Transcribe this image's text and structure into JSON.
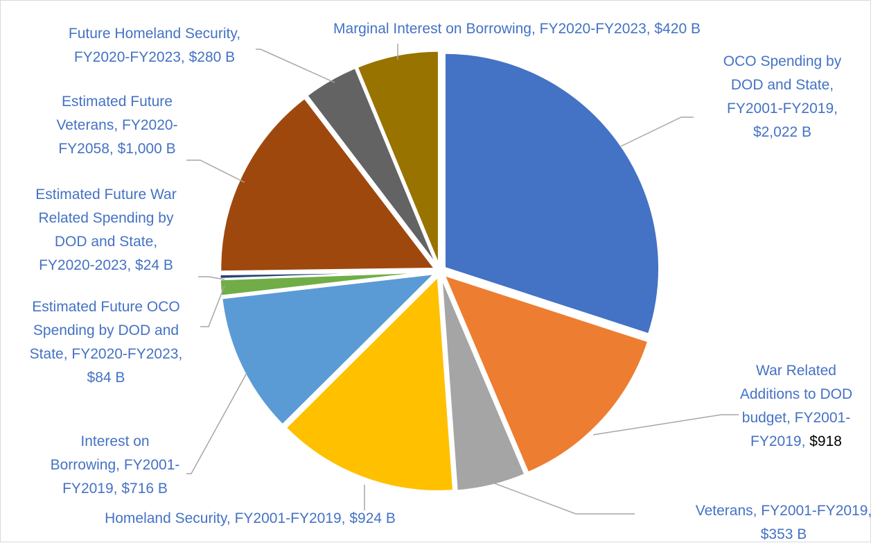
{
  "chart_data": {
    "type": "pie",
    "title": "",
    "label_color": "#4472c4",
    "slices": [
      {
        "lines": [
          "OCO Spending by",
          "DOD and State,",
          "FY2001-FY2019,",
          "$2,022 B"
        ],
        "value": 2022,
        "color": "#4472c4"
      },
      {
        "lines": [
          "War Related",
          "Additions to DOD",
          "budget, FY2001-",
          "FY2019,  $918"
        ],
        "value": 918,
        "color": "#ed7d31",
        "tail": "$918",
        "tail_color": "#000000"
      },
      {
        "lines": [
          "Veterans, FY2001-FY2019,",
          "$353 B"
        ],
        "value": 353,
        "color": "#a5a5a5"
      },
      {
        "lines": [
          "Homeland Security,  FY2001-FY2019,  $924 B"
        ],
        "value": 924,
        "color": "#ffc000"
      },
      {
        "lines": [
          "Interest on",
          "Borrowing, FY2001-",
          "FY2019,  $716 B"
        ],
        "value": 716,
        "color": "#5b9bd5"
      },
      {
        "lines": [
          "Estimated Future OCO",
          "Spending by DOD and",
          "State, FY2020-FY2023,",
          "$84 B"
        ],
        "value": 84,
        "color": "#70ad47"
      },
      {
        "lines": [
          "Estimated Future War",
          "Related Spending by",
          "DOD and State,",
          "FY2020-2023,  $24 B"
        ],
        "value": 24,
        "color": "#264478"
      },
      {
        "lines": [
          "Estimated Future",
          "Veterans, FY2020-",
          "FY2058,  $1,000 B"
        ],
        "value": 1000,
        "color": "#9e480e"
      },
      {
        "lines": [
          "Future Homeland Security,",
          "FY2020-FY2023,  $280 B"
        ],
        "value": 280,
        "color": "#636363"
      },
      {
        "lines": [
          "Marginal Interest on Borrowing, FY2020-FY2023,  $420  B"
        ],
        "value": 420,
        "color": "#997300"
      }
    ]
  }
}
